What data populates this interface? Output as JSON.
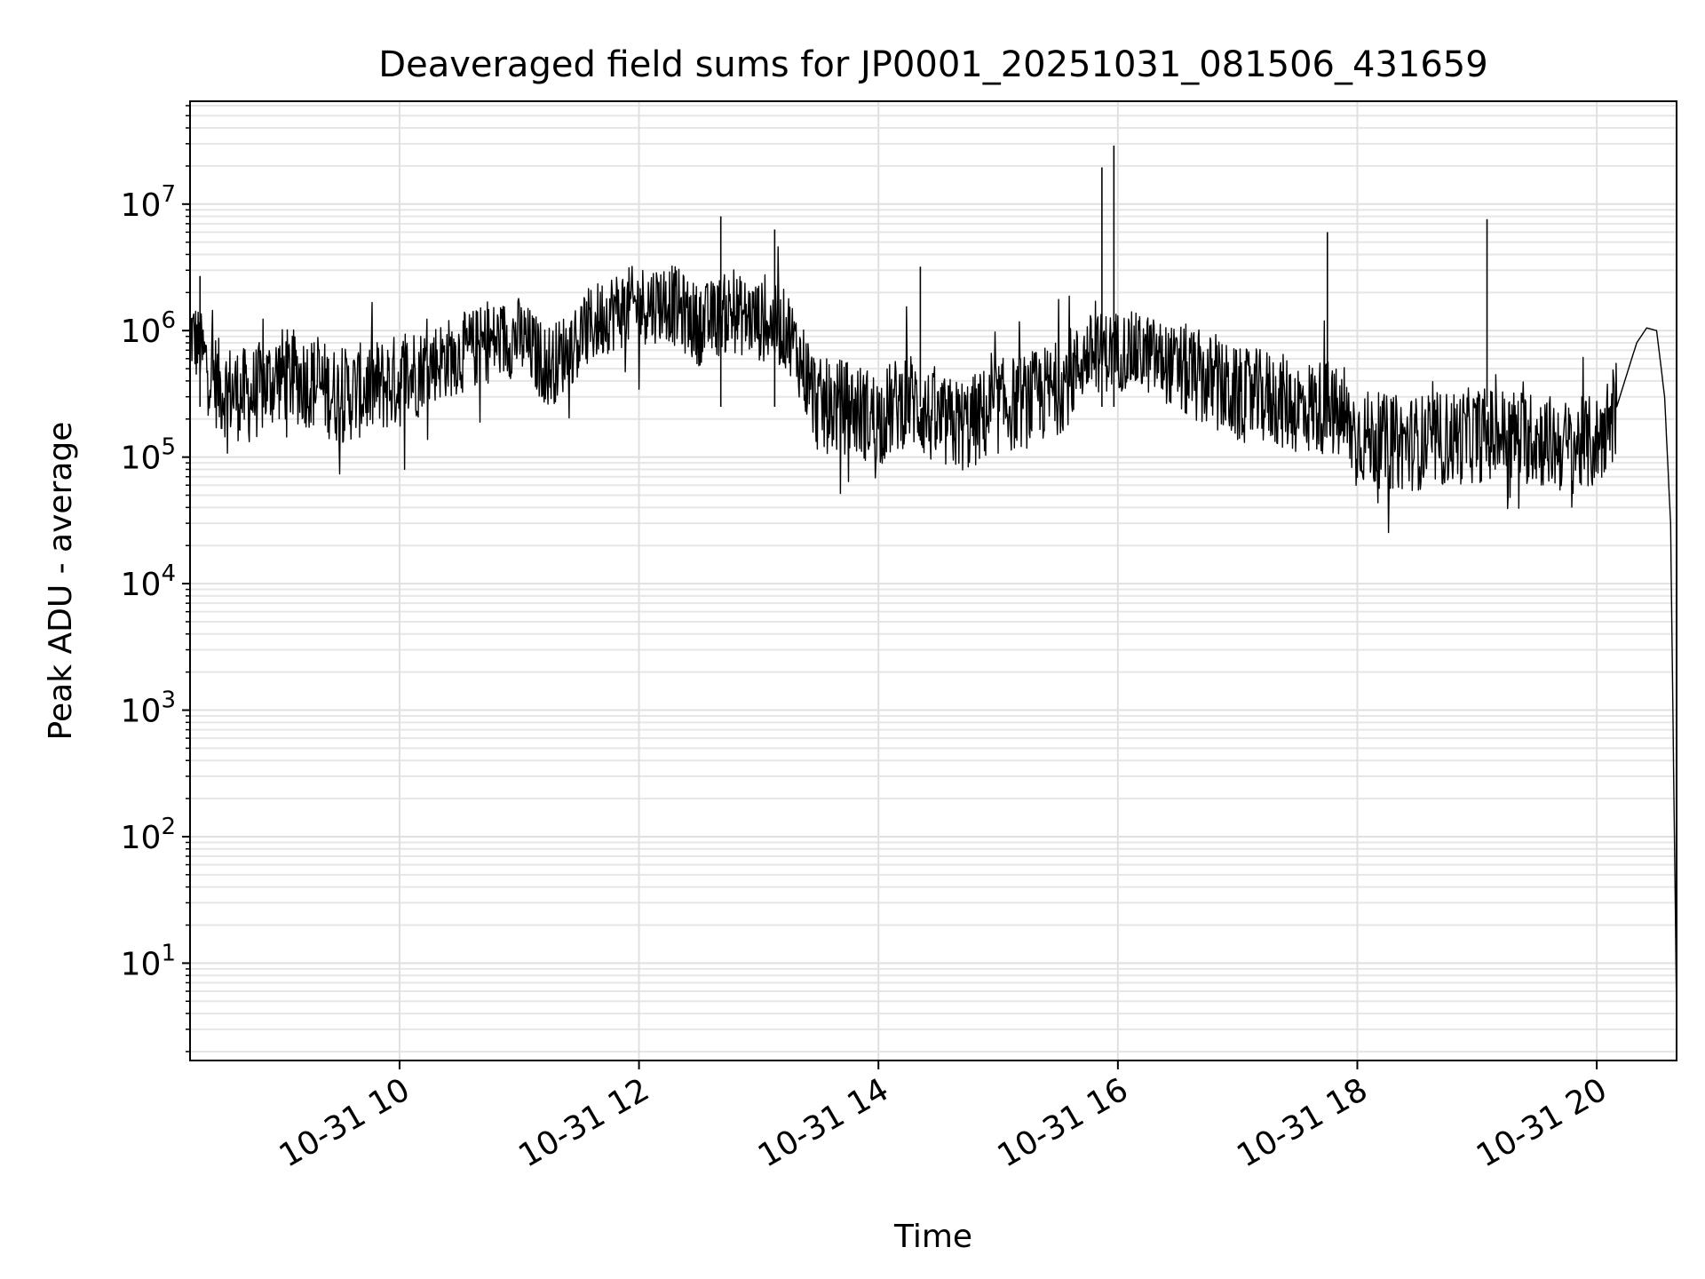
{
  "chart_data": {
    "type": "line",
    "title": "Deaveraged field sums for JP0001_20251031_081506_431659",
    "xlabel": "Time",
    "ylabel": "Peak ADU - average",
    "yscale": "log",
    "grid": true,
    "xlim": [
      "2025-10-31 08:15",
      "2025-10-31 20:40"
    ],
    "ylim": [
      1.7,
      65000000.0
    ],
    "xticks": [
      {
        "label": "10-31 10",
        "value": "2025-10-31 10:00"
      },
      {
        "label": "10-31 12",
        "value": "2025-10-31 12:00"
      },
      {
        "label": "10-31 14",
        "value": "2025-10-31 14:00"
      },
      {
        "label": "10-31 16",
        "value": "2025-10-31 16:00"
      },
      {
        "label": "10-31 18",
        "value": "2025-10-31 18:00"
      },
      {
        "label": "10-31 20",
        "value": "2025-10-31 20:00"
      }
    ],
    "yticks": [
      {
        "base": "10",
        "exp": "1",
        "value": 10
      },
      {
        "base": "10",
        "exp": "2",
        "value": 100
      },
      {
        "base": "10",
        "exp": "3",
        "value": 1000
      },
      {
        "base": "10",
        "exp": "4",
        "value": 10000
      },
      {
        "base": "10",
        "exp": "5",
        "value": 100000
      },
      {
        "base": "10",
        "exp": "6",
        "value": 1000000
      },
      {
        "base": "10",
        "exp": "7",
        "value": 10000000
      }
    ],
    "series": [
      {
        "color": "#000000",
        "x": [
          "2025-10-31 08:15",
          "2025-10-31 08:30",
          "2025-10-31 08:45",
          "2025-10-31 09:00",
          "2025-10-31 09:15",
          "2025-10-31 09:30",
          "2025-10-31 09:45",
          "2025-10-31 10:00",
          "2025-10-31 10:15",
          "2025-10-31 10:30",
          "2025-10-31 10:45",
          "2025-10-31 11:00",
          "2025-10-31 11:15",
          "2025-10-31 11:30",
          "2025-10-31 11:45",
          "2025-10-31 12:00",
          "2025-10-31 12:15",
          "2025-10-31 12:30",
          "2025-10-31 12:45",
          "2025-10-31 13:00",
          "2025-10-31 13:15",
          "2025-10-31 13:30",
          "2025-10-31 13:45",
          "2025-10-31 14:00",
          "2025-10-31 14:15",
          "2025-10-31 14:30",
          "2025-10-31 14:45",
          "2025-10-31 15:00",
          "2025-10-31 15:15",
          "2025-10-31 15:30",
          "2025-10-31 15:45",
          "2025-10-31 16:00",
          "2025-10-31 16:15",
          "2025-10-31 16:30",
          "2025-10-31 16:45",
          "2025-10-31 17:00",
          "2025-10-31 17:15",
          "2025-10-31 17:30",
          "2025-10-31 17:45",
          "2025-10-31 18:00",
          "2025-10-31 18:15",
          "2025-10-31 18:30",
          "2025-10-31 18:45",
          "2025-10-31 19:00",
          "2025-10-31 19:15",
          "2025-10-31 19:30",
          "2025-10-31 19:45",
          "2025-10-31 20:00",
          "2025-10-31 20:10",
          "2025-10-31 20:20",
          "2025-10-31 20:25",
          "2025-10-31 20:30",
          "2025-10-31 20:34",
          "2025-10-31 20:37",
          "2025-10-31 20:40"
        ],
        "y": [
          1000000,
          350000,
          300000,
          450000,
          400000,
          300000,
          350000,
          400000,
          550000,
          650000,
          800000,
          900000,
          500000,
          900000,
          1400000,
          1600000,
          1700000,
          1100000,
          1400000,
          1200000,
          1000000,
          250000,
          250000,
          200000,
          300000,
          180000,
          180000,
          250000,
          280000,
          350000,
          650000,
          700000,
          650000,
          500000,
          400000,
          300000,
          300000,
          250000,
          250000,
          150000,
          130000,
          130000,
          140000,
          150000,
          150000,
          140000,
          120000,
          130000,
          250000,
          800000,
          1050000,
          1000000,
          300000,
          30000,
          4
        ]
      }
    ],
    "spikes": [
      {
        "x": "2025-10-31 08:20",
        "y": 2700000
      },
      {
        "x": "2025-10-31 12:41",
        "y": 8000000
      },
      {
        "x": "2025-10-31 13:08",
        "y": 6300000
      },
      {
        "x": "2025-10-31 14:21",
        "y": 3200000
      },
      {
        "x": "2025-10-31 15:52",
        "y": 19500000
      },
      {
        "x": "2025-10-31 15:58",
        "y": 29000000
      },
      {
        "x": "2025-10-31 17:45",
        "y": 6000000
      },
      {
        "x": "2025-10-31 19:05",
        "y": 7600000
      }
    ]
  }
}
